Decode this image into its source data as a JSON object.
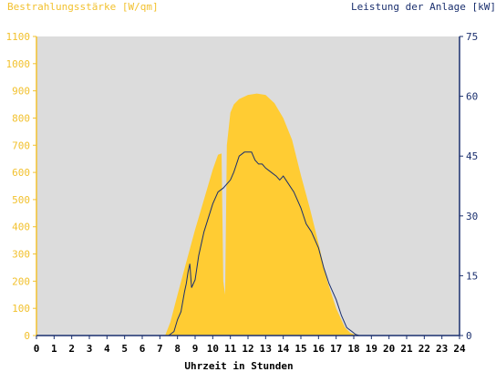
{
  "chart_data": {
    "type": "area",
    "title_left": "Bestrahlungsstärke [W/qm]",
    "title_right": "Leistung der Anlage [kW]",
    "xlabel": "Uhrzeit in Stunden",
    "x_ticks": [
      "0",
      "1",
      "2",
      "3",
      "4",
      "5",
      "6",
      "7",
      "8",
      "9",
      "10",
      "11",
      "12",
      "13",
      "14",
      "15",
      "16",
      "17",
      "18",
      "19",
      "20",
      "21",
      "22",
      "23",
      "24"
    ],
    "xlim": [
      0,
      24
    ],
    "y_left": {
      "ylim": [
        0,
        1100
      ],
      "ticks": [
        "0",
        "100",
        "200",
        "300",
        "400",
        "500",
        "600",
        "700",
        "800",
        "900",
        "1000",
        "1100"
      ]
    },
    "y_right": {
      "ylim": [
        0,
        75
      ],
      "ticks": [
        "0",
        "15",
        "30",
        "45",
        "60",
        "75"
      ]
    },
    "grid": false,
    "background": "#dcdcdc",
    "colors": {
      "irradiance": "#ffcc33",
      "power": "#1a2f6e",
      "left_axis": "#f2c12e",
      "right_axis": "#1a2f6e"
    },
    "series": [
      {
        "axis": "left",
        "kind": "area",
        "x": [
          0,
          7.3,
          7.6,
          8.0,
          8.5,
          9.0,
          9.5,
          10.0,
          10.3,
          10.5,
          10.6,
          10.7,
          10.8,
          11.0,
          11.2,
          11.5,
          12.0,
          12.5,
          13.0,
          13.5,
          14.0,
          14.5,
          15.0,
          15.5,
          16.0,
          16.5,
          17.0,
          17.5,
          17.8,
          18.0,
          18.2,
          24
        ],
        "y": [
          0,
          0,
          50,
          150,
          270,
          390,
          500,
          610,
          665,
          670,
          200,
          150,
          700,
          820,
          850,
          870,
          885,
          890,
          885,
          855,
          800,
          720,
          590,
          470,
          340,
          200,
          100,
          30,
          10,
          5,
          0,
          0
        ]
      },
      {
        "axis": "right",
        "kind": "line",
        "x": [
          0,
          7.5,
          7.8,
          8.0,
          8.2,
          8.4,
          8.5,
          8.6,
          8.7,
          8.8,
          9.0,
          9.2,
          9.5,
          10.0,
          10.3,
          10.6,
          11.0,
          11.2,
          11.5,
          11.8,
          12.0,
          12.2,
          12.4,
          12.6,
          12.8,
          13.0,
          13.3,
          13.6,
          13.8,
          14.0,
          14.3,
          14.6,
          15.0,
          15.3,
          15.6,
          16.0,
          16.3,
          16.6,
          17.0,
          17.3,
          17.6,
          17.9,
          18.1,
          18.3,
          24
        ],
        "y": [
          0,
          0,
          1,
          4,
          6,
          11,
          13,
          16,
          18,
          12,
          14,
          20,
          26,
          33,
          36,
          37,
          39,
          41,
          45,
          46,
          46,
          46,
          44,
          43,
          43,
          42,
          41,
          40,
          39,
          40,
          38,
          36,
          32,
          28,
          26,
          22,
          17,
          13,
          9,
          5,
          2,
          1,
          0.3,
          0,
          0
        ]
      }
    ]
  }
}
